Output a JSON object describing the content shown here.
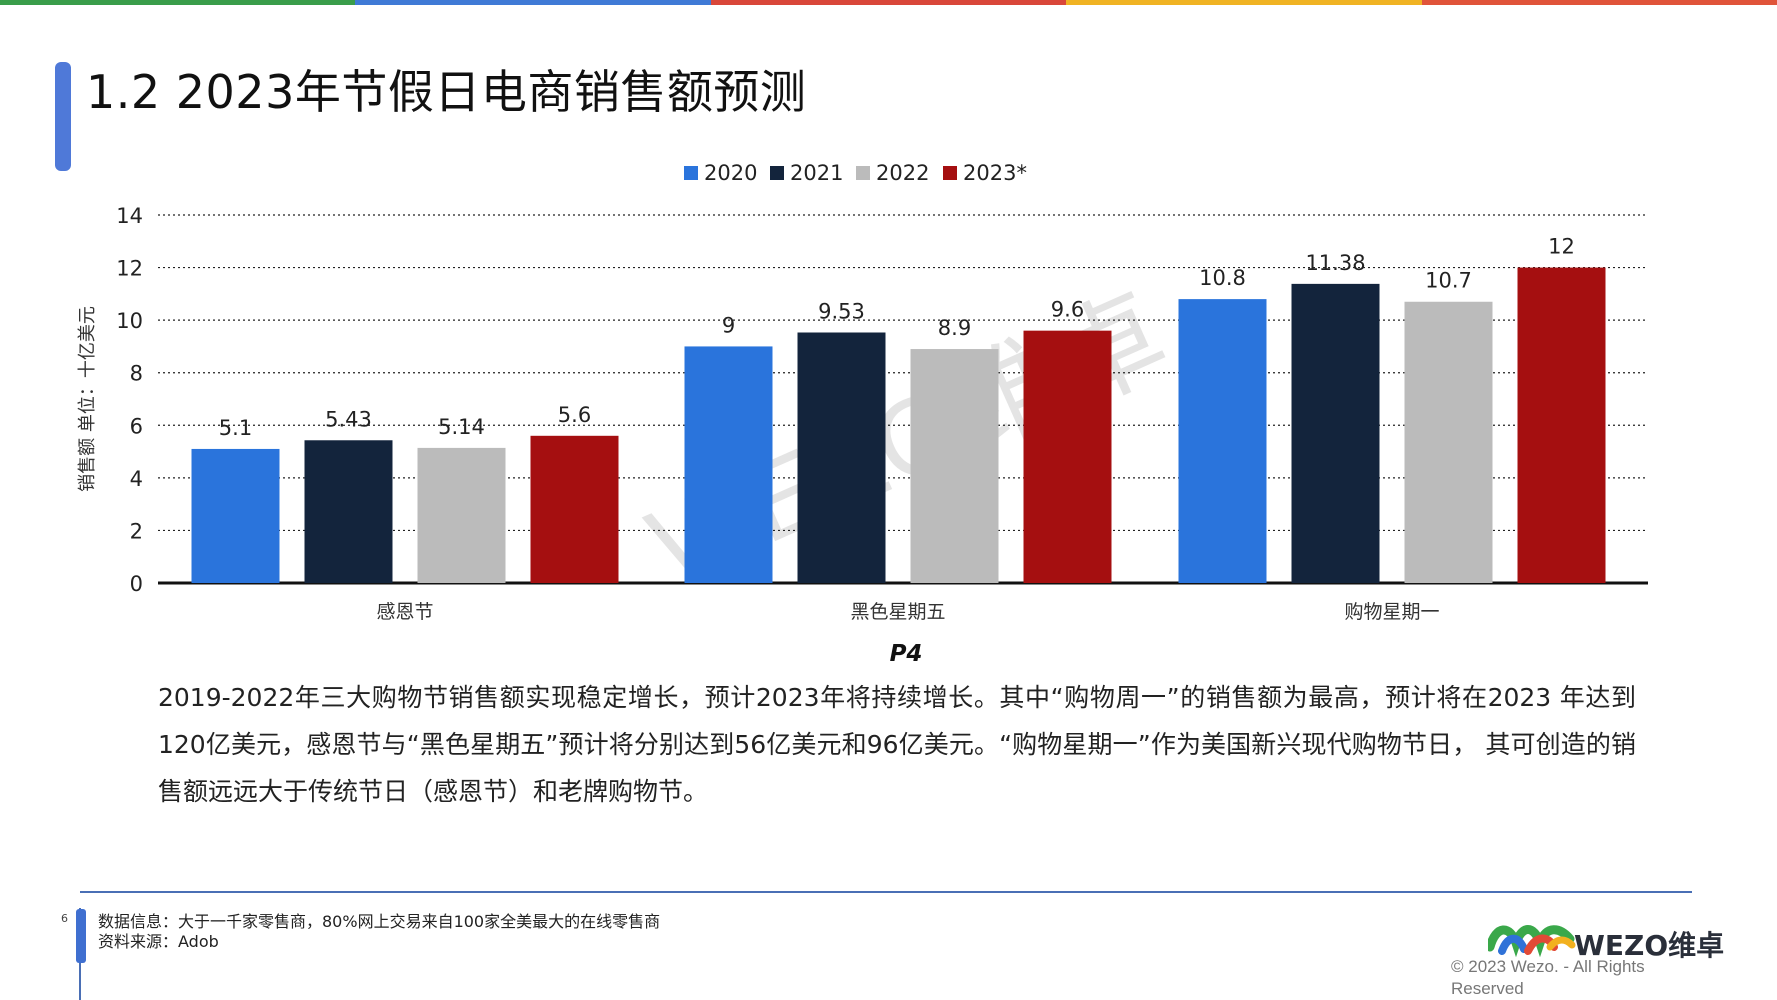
{
  "top_bar_colors": [
    "#3a9d4a",
    "#3f7ad6",
    "#d9473a",
    "#f0b323",
    "#e0543a"
  ],
  "title": "1.2 2023年节假日电商销售额预测",
  "chart_data": {
    "type": "bar",
    "categories": [
      "感恩节",
      "黑色星期五",
      "购物星期一"
    ],
    "series": [
      {
        "name": "2020",
        "color": "#2a74dc",
        "values": [
          5.1,
          9,
          10.8
        ]
      },
      {
        "name": "2021",
        "color": "#13243c",
        "values": [
          5.43,
          9.53,
          11.38
        ]
      },
      {
        "name": "2022",
        "color": "#bbbbbb",
        "values": [
          5.14,
          8.9,
          10.7
        ]
      },
      {
        "name": "2023*",
        "color": "#a50f10",
        "values": [
          5.6,
          9.6,
          12
        ]
      }
    ],
    "value_labels": [
      [
        "5.1",
        "9",
        "10.8"
      ],
      [
        "5.43",
        "9.53",
        "11.38"
      ],
      [
        "5.14",
        "8.9",
        "10.7"
      ],
      [
        "5.6",
        "9.6",
        "12"
      ]
    ],
    "ylabel": "销售额 单位：十亿美元",
    "xlabel": "P4",
    "ylim": [
      0,
      14
    ],
    "yticks": [
      0,
      2,
      4,
      6,
      8,
      10,
      12,
      14
    ],
    "grid": "dotted horizontal",
    "legend_position": "top-center"
  },
  "description": "2019-2022年三大购物节销售额实现稳定增长，预计2023年将持续增长。其中“购物周一”的销售额为最高，预计将在2023 年达到120亿美元，感恩节与“黑色星期五”预计将分别达到56亿美元和96亿美元。“购物星期一”作为美国新兴现代购物节日， 其可创造的销售额远远大于传统节日（感恩节）和老牌购物节。",
  "footer": {
    "page_number": "6",
    "data_info": "数据信息：大于一千家零售商，80%网上交易来自100家全美最大的在线零售商",
    "source": "资料来源：Adob",
    "logo_text": "WEZO维卓",
    "copyright": "© 2023 Wezo. - All Rights Reserved"
  },
  "watermark": "WEZO维卓"
}
